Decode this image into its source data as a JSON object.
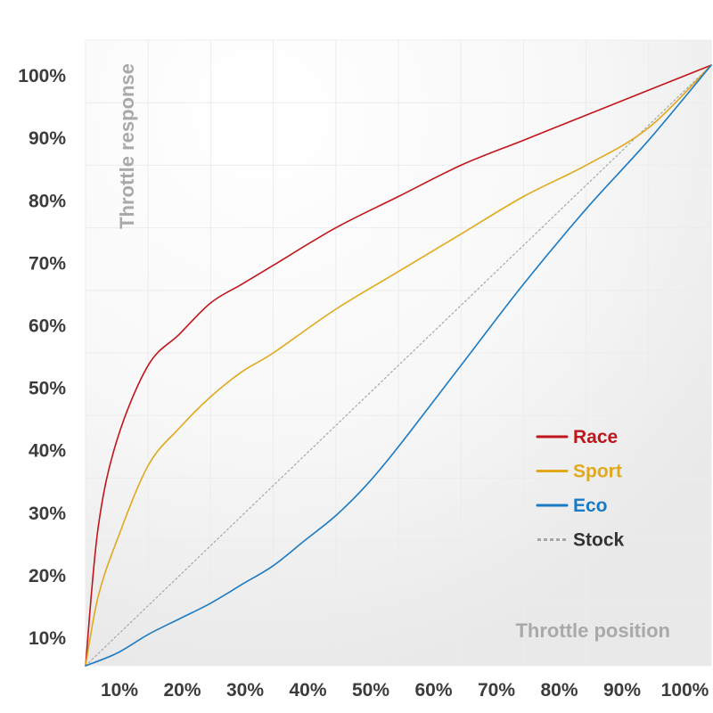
{
  "chart_data": {
    "type": "line",
    "xlabel": "Throttle position",
    "ylabel": "Throttle response",
    "xlim": [
      0,
      100
    ],
    "ylim": [
      0,
      100
    ],
    "x_ticks": [
      "10%",
      "20%",
      "30%",
      "40%",
      "50%",
      "60%",
      "70%",
      "80%",
      "90%",
      "100%"
    ],
    "y_ticks": [
      "10%",
      "20%",
      "30%",
      "40%",
      "50%",
      "60%",
      "70%",
      "80%",
      "90%",
      "100%"
    ],
    "grid": true,
    "legend_position": "center-right",
    "series": [
      {
        "name": "Race",
        "color": "#c0151a",
        "style": "solid",
        "x": [
          0,
          2,
          5,
          10,
          15,
          20,
          25,
          30,
          40,
          50,
          60,
          70,
          80,
          90,
          100
        ],
        "y": [
          0,
          22,
          36,
          48,
          53,
          58,
          61,
          64,
          70,
          75,
          80,
          84,
          88,
          92,
          96
        ]
      },
      {
        "name": "Sport",
        "color": "#e1a91a",
        "style": "solid",
        "x": [
          0,
          2,
          5,
          10,
          15,
          20,
          25,
          30,
          40,
          50,
          60,
          70,
          80,
          90,
          100
        ],
        "y": [
          0,
          11,
          20,
          32,
          38,
          43,
          47,
          50,
          57,
          63,
          69,
          75,
          80,
          86,
          96
        ]
      },
      {
        "name": "Eco",
        "color": "#1a7ac4",
        "style": "solid",
        "x": [
          0,
          5,
          10,
          15,
          20,
          25,
          30,
          35,
          40,
          45,
          50,
          60,
          70,
          80,
          90,
          100
        ],
        "y": [
          0,
          2,
          5,
          7.5,
          10,
          13,
          16,
          20,
          24,
          29,
          35,
          48,
          61,
          73,
          84,
          96
        ]
      },
      {
        "name": "Stock",
        "color": "#a6a6a6",
        "style": "dotted",
        "x": [
          0,
          100
        ],
        "y": [
          0,
          96
        ]
      }
    ]
  }
}
